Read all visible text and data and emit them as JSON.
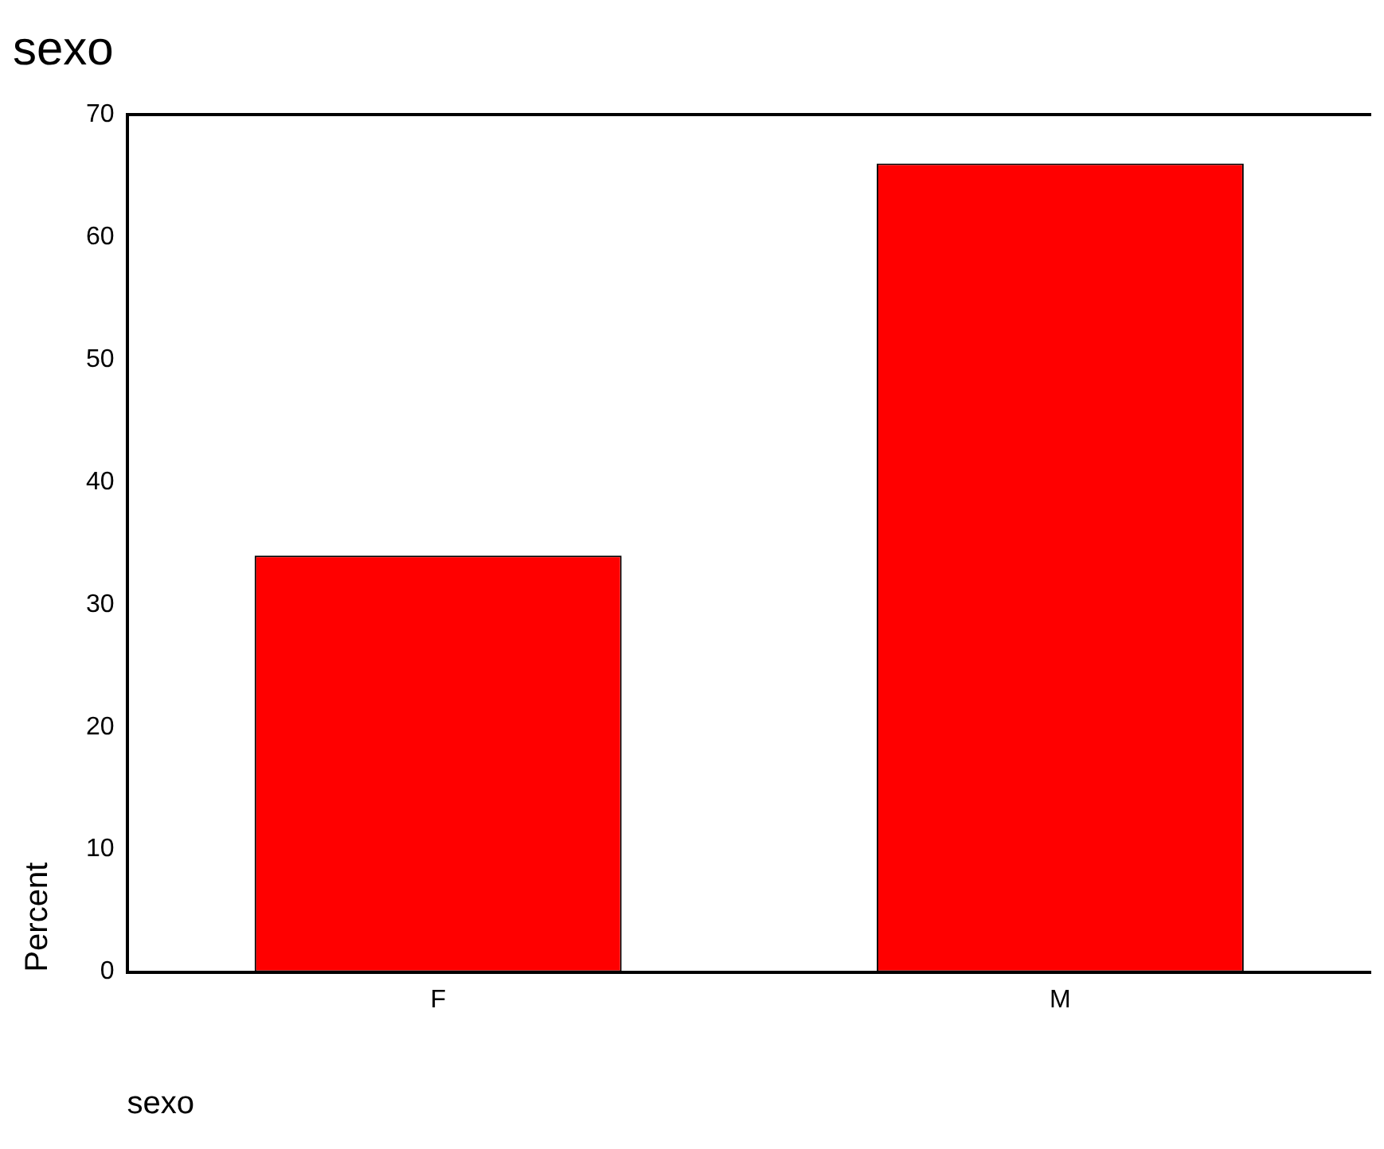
{
  "chart_data": {
    "type": "bar",
    "title": "sexo",
    "xlabel": "sexo",
    "ylabel": "Percent",
    "categories": [
      "F",
      "M"
    ],
    "values": [
      34,
      66
    ],
    "color": "#ff0000",
    "ylim": [
      0,
      70
    ],
    "yticks": [
      0,
      10,
      20,
      30,
      40,
      50,
      60,
      70
    ],
    "grid": false,
    "legend": false
  }
}
